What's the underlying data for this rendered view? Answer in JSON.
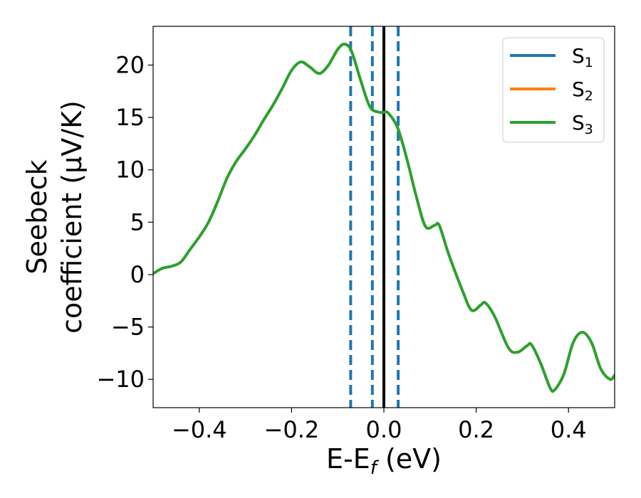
{
  "chart_data": {
    "type": "line",
    "xlabel": {
      "main": "E-E",
      "sub": "f",
      "suffix": " (eV)"
    },
    "ylabel": {
      "line1": "Seebeck",
      "line2": "coefficient  (μV/K)"
    },
    "xlim": [
      -0.5,
      0.5
    ],
    "ylim": [
      -12.7,
      23.7
    ],
    "xticks": [
      -0.4,
      -0.2,
      0.0,
      0.2,
      0.4
    ],
    "xtick_labels": [
      "−0.4",
      "−0.2",
      "0.0",
      "0.2",
      "0.4"
    ],
    "yticks": [
      -10,
      -5,
      0,
      5,
      10,
      15,
      20
    ],
    "ytick_labels": [
      "−10",
      "−5",
      "0",
      "5",
      "10",
      "15",
      "20"
    ],
    "grid": false,
    "legend_position": "top-right",
    "series": [
      {
        "name": "S",
        "sub": "1",
        "color": "#1f77b4",
        "points": []
      },
      {
        "name": "S",
        "sub": "2",
        "color": "#ff7f0e",
        "points": []
      },
      {
        "name": "S",
        "sub": "3",
        "color": "#2ca02c",
        "points": [
          [
            -0.5,
            0.1
          ],
          [
            -0.48,
            0.6
          ],
          [
            -0.46,
            0.8
          ],
          [
            -0.44,
            1.2
          ],
          [
            -0.42,
            2.4
          ],
          [
            -0.4,
            3.6
          ],
          [
            -0.38,
            5.0
          ],
          [
            -0.36,
            7.0
          ],
          [
            -0.34,
            9.2
          ],
          [
            -0.32,
            10.8
          ],
          [
            -0.3,
            12.0
          ],
          [
            -0.28,
            13.3
          ],
          [
            -0.26,
            14.8
          ],
          [
            -0.24,
            16.2
          ],
          [
            -0.22,
            17.8
          ],
          [
            -0.2,
            19.5
          ],
          [
            -0.18,
            20.3
          ],
          [
            -0.16,
            19.8
          ],
          [
            -0.14,
            19.2
          ],
          [
            -0.12,
            20.0
          ],
          [
            -0.1,
            21.5
          ],
          [
            -0.085,
            22.0
          ],
          [
            -0.07,
            21.3
          ],
          [
            -0.05,
            18.5
          ],
          [
            -0.03,
            16.0
          ],
          [
            -0.01,
            15.5
          ],
          [
            0.0,
            15.5
          ],
          [
            0.01,
            15.4
          ],
          [
            0.03,
            14.0
          ],
          [
            0.05,
            11.0
          ],
          [
            0.07,
            7.5
          ],
          [
            0.09,
            4.6
          ],
          [
            0.11,
            4.7
          ],
          [
            0.12,
            4.7
          ],
          [
            0.14,
            2.0
          ],
          [
            0.17,
            -1.5
          ],
          [
            0.19,
            -3.4
          ],
          [
            0.21,
            -2.9
          ],
          [
            0.22,
            -2.7
          ],
          [
            0.24,
            -4.0
          ],
          [
            0.27,
            -7.0
          ],
          [
            0.29,
            -7.4
          ],
          [
            0.31,
            -6.8
          ],
          [
            0.32,
            -6.7
          ],
          [
            0.34,
            -8.5
          ],
          [
            0.36,
            -10.8
          ],
          [
            0.37,
            -11.0
          ],
          [
            0.39,
            -9.5
          ],
          [
            0.41,
            -6.5
          ],
          [
            0.43,
            -5.5
          ],
          [
            0.45,
            -6.5
          ],
          [
            0.47,
            -9.0
          ],
          [
            0.49,
            -10.0
          ],
          [
            0.5,
            -9.6
          ]
        ]
      }
    ],
    "vlines": [
      {
        "x": -0.072,
        "style": "dashed",
        "color": "#1f77b4"
      },
      {
        "x": -0.025,
        "style": "dashed",
        "color": "#1f77b4"
      },
      {
        "x": 0.0,
        "style": "solid",
        "color": "#000000"
      },
      {
        "x": 0.031,
        "style": "dashed",
        "color": "#1f77b4"
      }
    ]
  }
}
